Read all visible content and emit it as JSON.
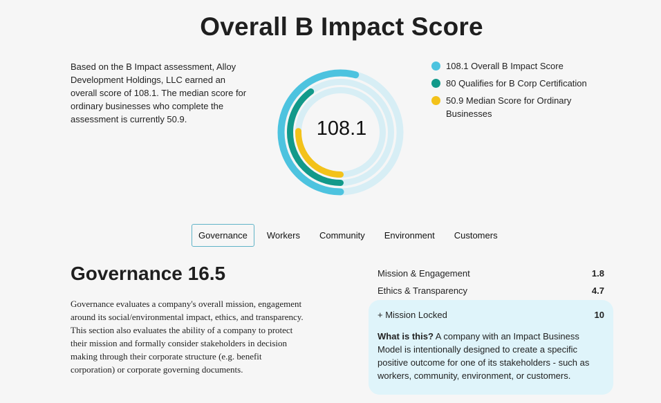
{
  "page": {
    "title": "Overall B Impact Score",
    "intro": "Based on the B Impact assessment, Alloy Development Holdings, LLC earned an overall score of 108.1. The median score for ordinary businesses who complete the assessment is currently 50.9."
  },
  "donut": {
    "center_value": "108.1",
    "rings": [
      {
        "name": "Overall B Impact Score",
        "value": 108.1,
        "max": 200,
        "color": "#4dc3df",
        "track": "#d7eef5"
      },
      {
        "name": "Qualifies for B Corp Certification",
        "value": 80,
        "max": 200,
        "color": "#12998a",
        "track": "#d7eef5"
      },
      {
        "name": "Median Score for Ordinary Businesses",
        "value": 50.9,
        "max": 200,
        "color": "#f3c21a",
        "track": "#d7eef5"
      }
    ]
  },
  "legend": [
    {
      "label": "108.1 Overall B Impact Score",
      "color": "#4dc3df"
    },
    {
      "label": "80 Qualifies for B Corp Certification",
      "color": "#12998a"
    },
    {
      "label": "50.9 Median Score for Ordinary Businesses",
      "color": "#f3c21a"
    }
  ],
  "tabs": [
    {
      "label": "Governance",
      "active": true
    },
    {
      "label": "Workers",
      "active": false
    },
    {
      "label": "Community",
      "active": false
    },
    {
      "label": "Environment",
      "active": false
    },
    {
      "label": "Customers",
      "active": false
    }
  ],
  "section": {
    "title": "Governance 16.5",
    "description": "Governance evaluates a company's overall mission, engagement around its social/environmental impact, ethics, and transparency. This section also evaluates the ability of a company to protect their mission and formally consider stakeholders in decision making through their corporate structure (e.g. benefit corporation) or corporate governing documents."
  },
  "metrics": [
    {
      "label": "Mission & Engagement",
      "value": "1.8"
    },
    {
      "label": "Ethics & Transparency",
      "value": "4.7"
    }
  ],
  "mission_locked": {
    "label": "+ Mission Locked",
    "value": "10",
    "what_label": "What is this?",
    "what_text": " A company with an Impact Business Model is intentionally designed to create a specific positive outcome for one of its stakeholders - such as workers, community, environment, or customers."
  }
}
